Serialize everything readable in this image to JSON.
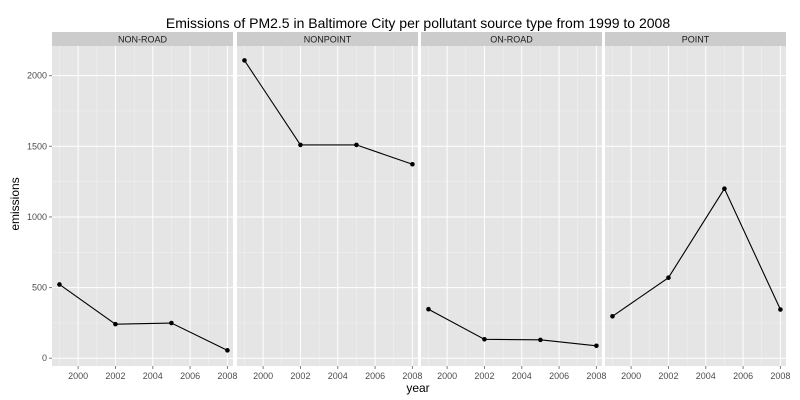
{
  "chart_data": {
    "type": "line",
    "title": "Emissions of PM2.5 in Baltimore City per pollutant source type from 1999 to 2008",
    "xlabel": "year",
    "ylabel": "emissions",
    "xlim": [
      1998.6,
      2008.3
    ],
    "ylim": [
      -55,
      2210
    ],
    "x_ticks": [
      2000,
      2002,
      2004,
      2006,
      2008
    ],
    "x_tick_labels": [
      "2000",
      "2002",
      "2004",
      "2006",
      "2008"
    ],
    "y_ticks": [
      0,
      500,
      1000,
      1500,
      2000
    ],
    "y_tick_labels": [
      "0",
      "500",
      "1000",
      "1500",
      "2000"
    ],
    "grid": true,
    "x": [
      1999,
      2002,
      2005,
      2008
    ],
    "facets": [
      {
        "name": "NON-ROAD",
        "values": [
          522,
          241,
          249,
          56
        ]
      },
      {
        "name": "NONPOINT",
        "values": [
          2108,
          1510,
          1510,
          1373
        ]
      },
      {
        "name": "ON-ROAD",
        "values": [
          347,
          134,
          130,
          88
        ]
      },
      {
        "name": "POINT",
        "values": [
          297,
          570,
          1200,
          345
        ]
      }
    ],
    "colors": {
      "panel_bg": "#e5e5e5",
      "grid_major": "#ffffff",
      "grid_minor": "#f2f2f2",
      "strip_bg": "#cccccc",
      "line": "#000000"
    }
  }
}
